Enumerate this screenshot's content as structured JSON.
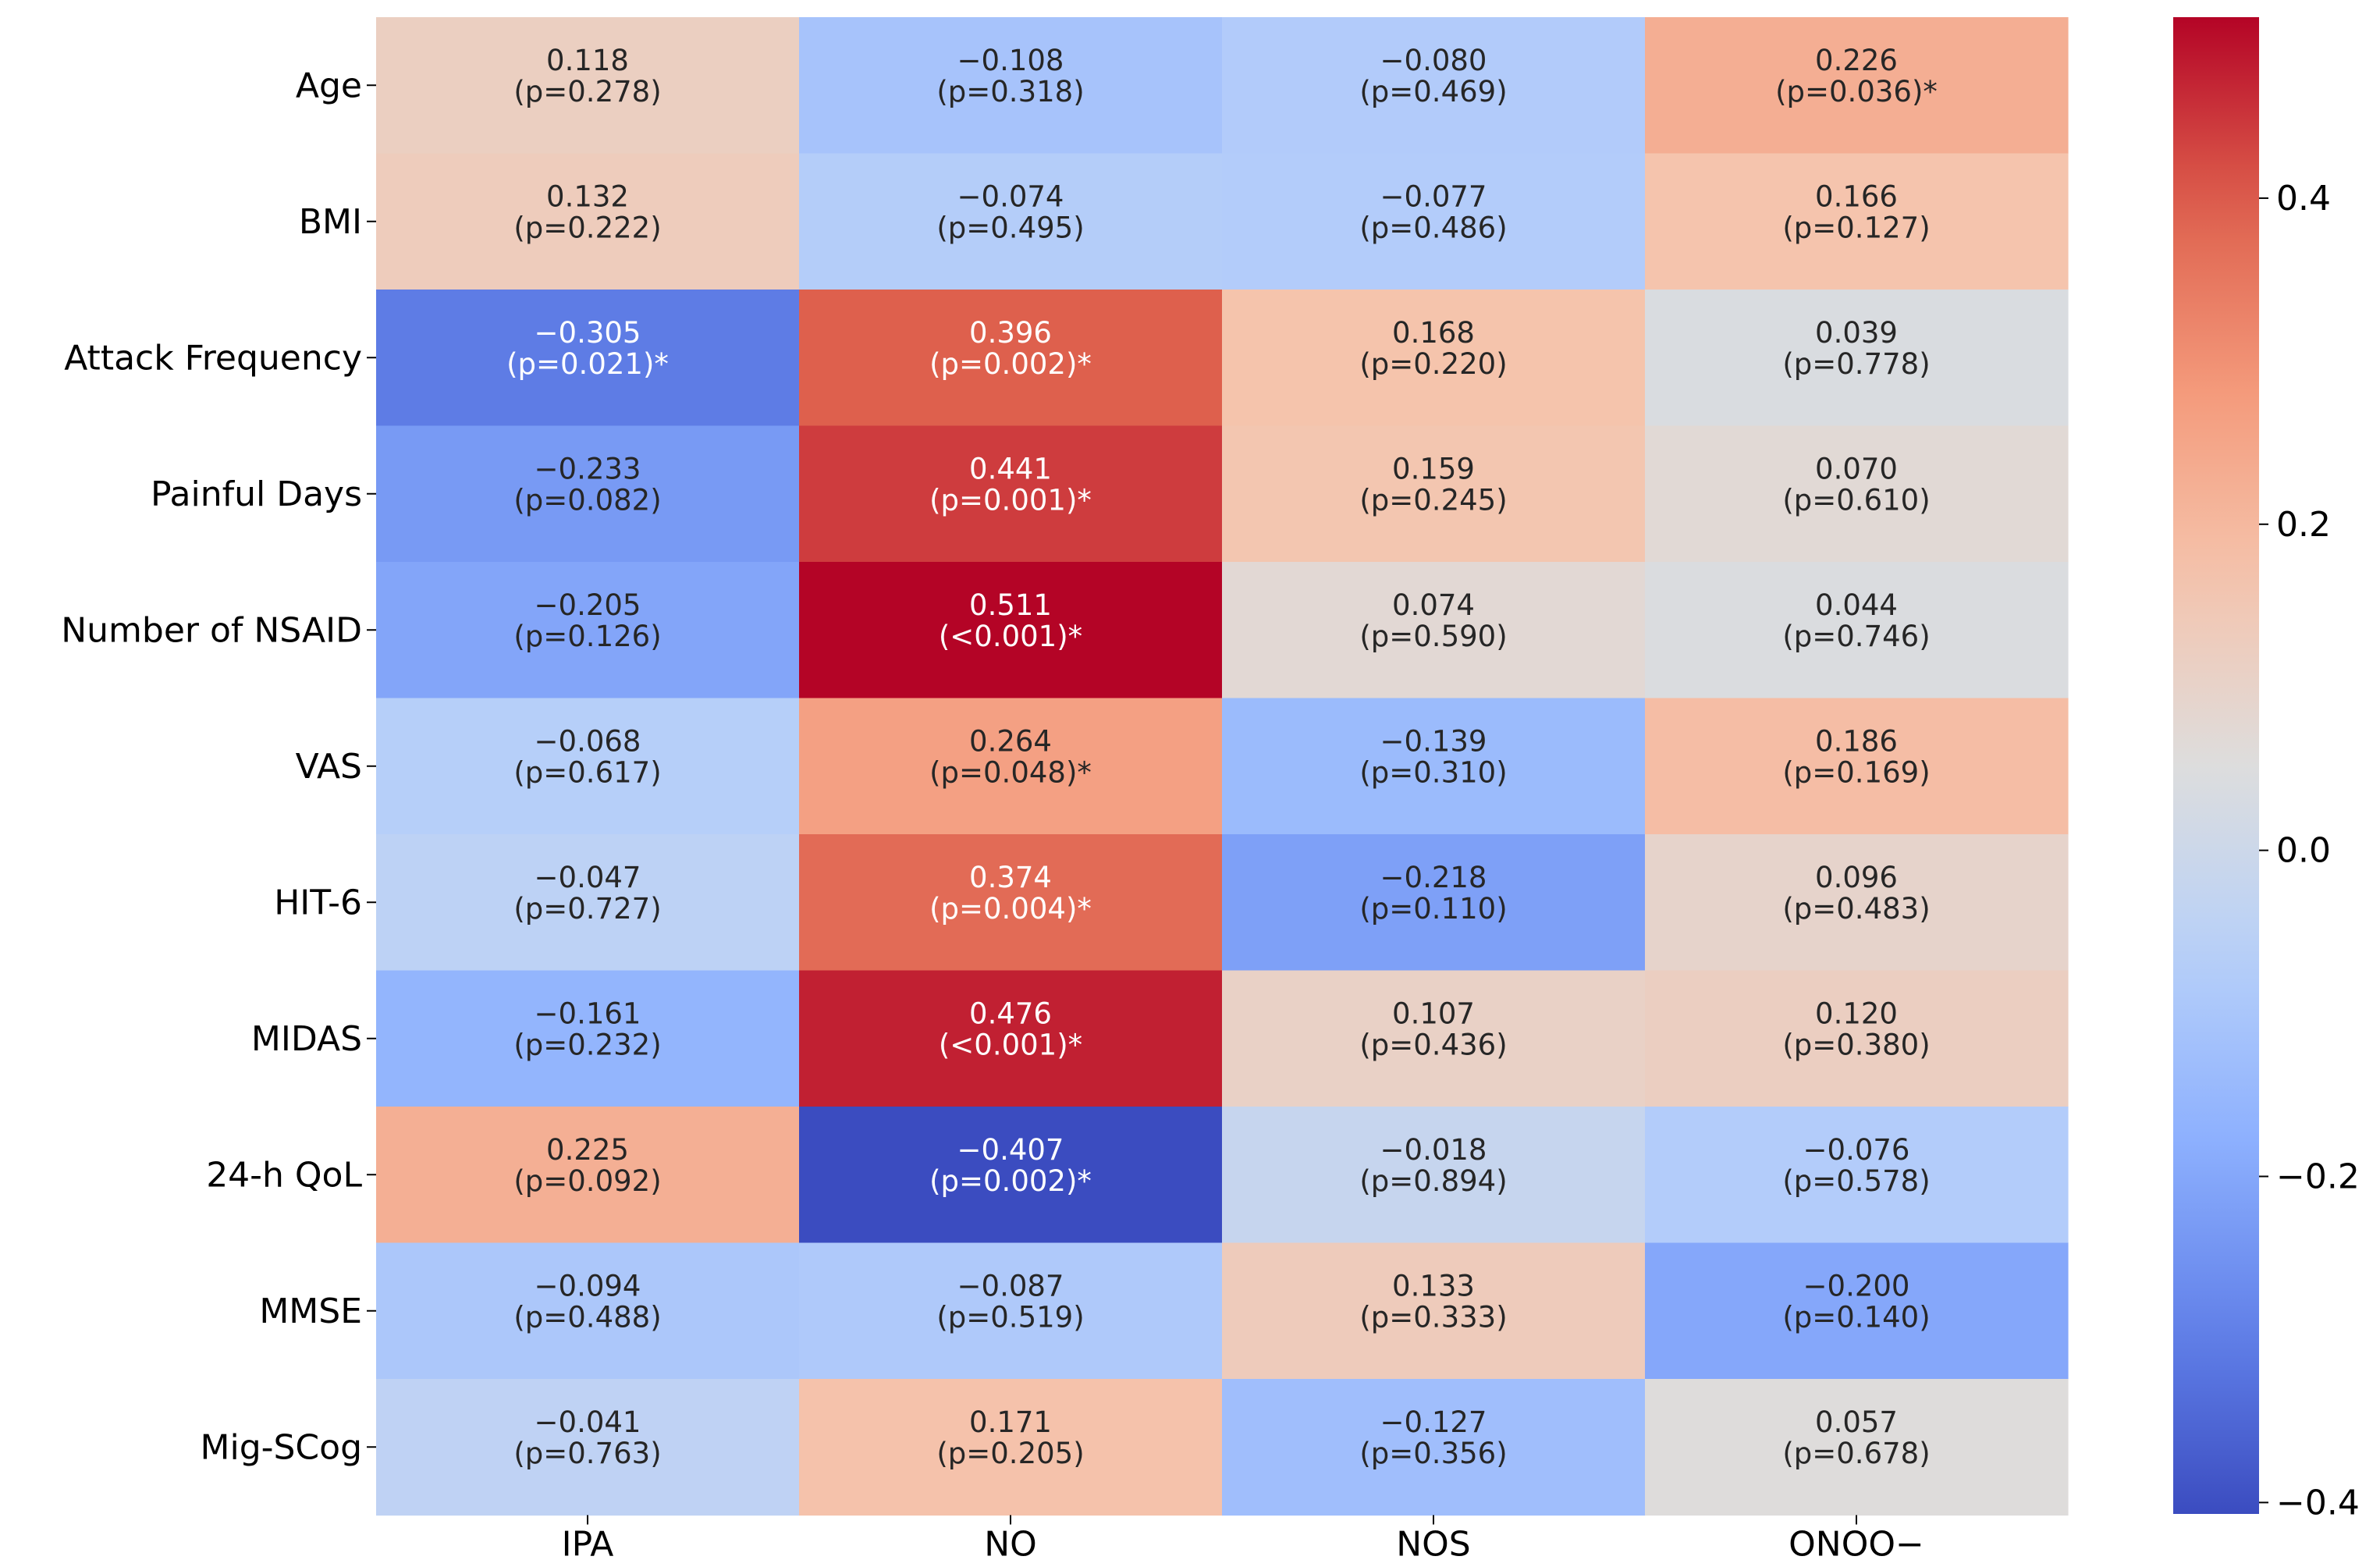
{
  "chart_data": {
    "type": "heatmap",
    "title": "",
    "xlabel": "",
    "ylabel": "",
    "columns": [
      "IPA",
      "NO",
      "NOS",
      "ONOO−"
    ],
    "rows": [
      "Age",
      "BMI",
      "Attack Frequency",
      "Painful Days",
      "Number of NSAID",
      "VAS",
      "HIT-6",
      "MIDAS",
      "24-h QoL",
      "MMSE",
      "Mig-SCog"
    ],
    "values": [
      [
        0.118,
        -0.108,
        -0.08,
        0.226
      ],
      [
        0.132,
        -0.074,
        -0.077,
        0.166
      ],
      [
        -0.305,
        0.396,
        0.168,
        0.039
      ],
      [
        -0.233,
        0.441,
        0.159,
        0.07
      ],
      [
        -0.205,
        0.511,
        0.074,
        0.044
      ],
      [
        -0.068,
        0.264,
        -0.139,
        0.186
      ],
      [
        -0.047,
        0.374,
        -0.218,
        0.096
      ],
      [
        -0.161,
        0.476,
        0.107,
        0.12
      ],
      [
        0.225,
        -0.407,
        -0.018,
        -0.076
      ],
      [
        -0.094,
        -0.087,
        0.133,
        -0.2
      ],
      [
        -0.041,
        0.171,
        -0.127,
        0.057
      ]
    ],
    "value_labels": [
      [
        "0.118",
        "−0.108",
        "−0.080",
        "0.226"
      ],
      [
        "0.132",
        "−0.074",
        "−0.077",
        "0.166"
      ],
      [
        "−0.305",
        "0.396",
        "0.168",
        "0.039"
      ],
      [
        "−0.233",
        "0.441",
        "0.159",
        "0.070"
      ],
      [
        "−0.205",
        "0.511",
        "0.074",
        "0.044"
      ],
      [
        "−0.068",
        "0.264",
        "−0.139",
        "0.186"
      ],
      [
        "−0.047",
        "0.374",
        "−0.218",
        "0.096"
      ],
      [
        "−0.161",
        "0.476",
        "0.107",
        "0.120"
      ],
      [
        "0.225",
        "−0.407",
        "−0.018",
        "−0.076"
      ],
      [
        "−0.094",
        "−0.087",
        "0.133",
        "−0.200"
      ],
      [
        "−0.041",
        "0.171",
        "−0.127",
        "0.057"
      ]
    ],
    "p_labels": [
      [
        "(p=0.278)",
        "(p=0.318)",
        "(p=0.469)",
        "(p=0.036)*"
      ],
      [
        "(p=0.222)",
        "(p=0.495)",
        "(p=0.486)",
        "(p=0.127)"
      ],
      [
        "(p=0.021)*",
        "(p=0.002)*",
        "(p=0.220)",
        "(p=0.778)"
      ],
      [
        "(p=0.082)",
        "(p=0.001)*",
        "(p=0.245)",
        "(p=0.610)"
      ],
      [
        "(p=0.126)",
        "(<0.001)*",
        "(p=0.590)",
        "(p=0.746)"
      ],
      [
        "(p=0.617)",
        "(p=0.048)*",
        "(p=0.310)",
        "(p=0.169)"
      ],
      [
        "(p=0.727)",
        "(p=0.004)*",
        "(p=0.110)",
        "(p=0.483)"
      ],
      [
        "(p=0.232)",
        "(<0.001)*",
        "(p=0.436)",
        "(p=0.380)"
      ],
      [
        "(p=0.092)",
        "(p=0.002)*",
        "(p=0.894)",
        "(p=0.578)"
      ],
      [
        "(p=0.488)",
        "(p=0.519)",
        "(p=0.333)",
        "(p=0.140)"
      ],
      [
        "(p=0.763)",
        "(p=0.205)",
        "(p=0.356)",
        "(p=0.678)"
      ]
    ],
    "colorbar": {
      "colormap": "coolwarm",
      "vmin": -0.407,
      "vmax": 0.511,
      "ticks": [
        -0.4,
        -0.2,
        0.0,
        0.2,
        0.4
      ],
      "tick_labels": [
        "−0.4",
        "−0.2",
        "0.0",
        "0.2",
        "0.4"
      ]
    },
    "grid": false,
    "legend": "colorbar-right"
  }
}
